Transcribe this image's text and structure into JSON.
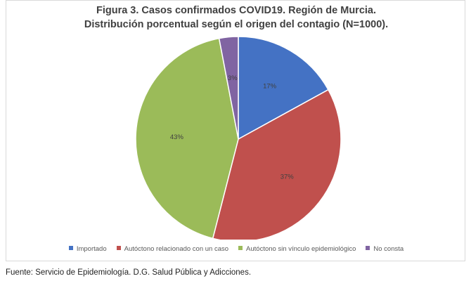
{
  "chart_data": {
    "type": "pie",
    "title": "Figura 3. Casos confirmados COVID19. Región de Murcia.",
    "subtitle": "Distribución porcentual según el origen del contagio (N=1000).",
    "slices": [
      {
        "label": "Importado",
        "value": 17,
        "display": "17%",
        "color": "#4472C4"
      },
      {
        "label": "Autóctono relacionado con un caso",
        "value": 37,
        "display": "37%",
        "color": "#C0504D"
      },
      {
        "label": "Autóctono sin vínculo epidemiológico",
        "value": 43,
        "display": "43%",
        "color": "#9BBB59"
      },
      {
        "label": "No consta",
        "value": 3,
        "display": "3%",
        "color": "#8064A2"
      }
    ],
    "legend_position": "bottom",
    "start": "12 o'clock, clockwise"
  },
  "source": "Fuente: Servicio de Epidemiología. D.G. Salud Pública y Adicciones."
}
